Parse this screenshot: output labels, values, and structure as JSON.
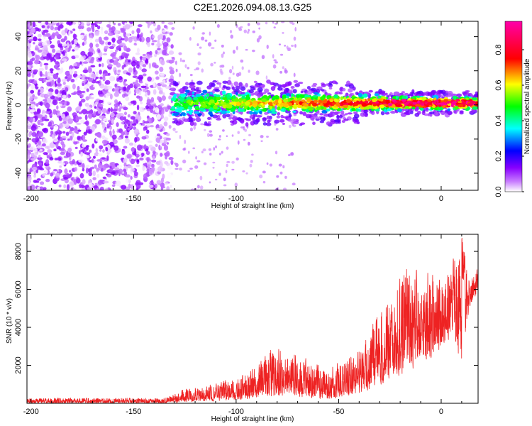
{
  "chart_data": [
    {
      "id": "spectrogram",
      "type": "heatmap",
      "title": "C2E1.2026.094.08.13.G25",
      "xlabel": "Height of straight line (km)",
      "ylabel": "Frequency (Hz)",
      "xlim": [
        -202,
        18
      ],
      "ylim": [
        -50,
        49
      ],
      "xticks": [
        -200,
        -150,
        -100,
        -50,
        0
      ],
      "xtick_labels": [
        "-200",
        "-150",
        "-100",
        "-50",
        "0"
      ],
      "yticks": [
        -40,
        -20,
        0,
        20,
        40
      ],
      "ytick_labels": [
        "-40",
        "-20",
        "0",
        "20",
        "40"
      ],
      "colorbar": {
        "label": "Normalized spectral amplitude",
        "range": [
          0.0,
          0.96
        ],
        "ticks": [
          0.0,
          0.2,
          0.4,
          0.6,
          0.8
        ],
        "tick_labels": [
          "0.0",
          "0.2",
          "0.4",
          "0.6",
          "0.8"
        ],
        "colormap": [
          "#ffffff",
          "#8800ff",
          "#0000ff",
          "#00ffff",
          "#00ff00",
          "#ffff00",
          "#ff0000",
          "#ff00aa"
        ]
      },
      "regions": [
        {
          "desc": "broadband noise",
          "x_range": [
            -202,
            -131
          ],
          "amp_range": [
            0.0,
            0.14
          ]
        },
        {
          "desc": "signal band",
          "x_range": [
            -131,
            18
          ],
          "center_hz": 1,
          "half_width_hz": 8,
          "amp_range": [
            0.1,
            0.95
          ]
        }
      ]
    },
    {
      "id": "snr",
      "type": "line",
      "xlabel": "Height of straight line (km)",
      "ylabel": "SNR (10 * v/v)",
      "xlim": [
        -202,
        18
      ],
      "ylim": [
        0,
        8900
      ],
      "xticks": [
        -200,
        -150,
        -100,
        -50,
        0
      ],
      "xtick_labels": [
        "-200",
        "-150",
        "-100",
        "-50",
        "0"
      ],
      "yticks": [
        2000,
        4000,
        6000,
        8000
      ],
      "ytick_labels": [
        "2000",
        "4000",
        "6000",
        "8000"
      ],
      "line_color": "#ee2222",
      "envelope": [
        {
          "x": -202,
          "low": 0,
          "high": 300
        },
        {
          "x": -135,
          "low": 0,
          "high": 300
        },
        {
          "x": -125,
          "low": 50,
          "high": 800
        },
        {
          "x": -110,
          "low": 100,
          "high": 1100
        },
        {
          "x": -100,
          "low": 150,
          "high": 1500
        },
        {
          "x": -90,
          "low": 200,
          "high": 2000
        },
        {
          "x": -83,
          "low": 300,
          "high": 3200
        },
        {
          "x": -75,
          "low": 300,
          "high": 2900
        },
        {
          "x": -65,
          "low": 200,
          "high": 2400
        },
        {
          "x": -55,
          "low": 200,
          "high": 2000
        },
        {
          "x": -48,
          "low": 300,
          "high": 2600
        },
        {
          "x": -40,
          "low": 400,
          "high": 3000
        },
        {
          "x": -33,
          "low": 800,
          "high": 4700
        },
        {
          "x": -25,
          "low": 1200,
          "high": 6300
        },
        {
          "x": -18,
          "low": 1500,
          "high": 7800
        },
        {
          "x": -10,
          "low": 2000,
          "high": 7200
        },
        {
          "x": -2,
          "low": 2500,
          "high": 7200
        },
        {
          "x": 5,
          "low": 3500,
          "high": 7800
        },
        {
          "x": 10,
          "low": 1700,
          "high": 8900
        },
        {
          "x": 14,
          "low": 5000,
          "high": 6600
        },
        {
          "x": 18,
          "low": 5800,
          "high": 7500
        }
      ]
    }
  ]
}
